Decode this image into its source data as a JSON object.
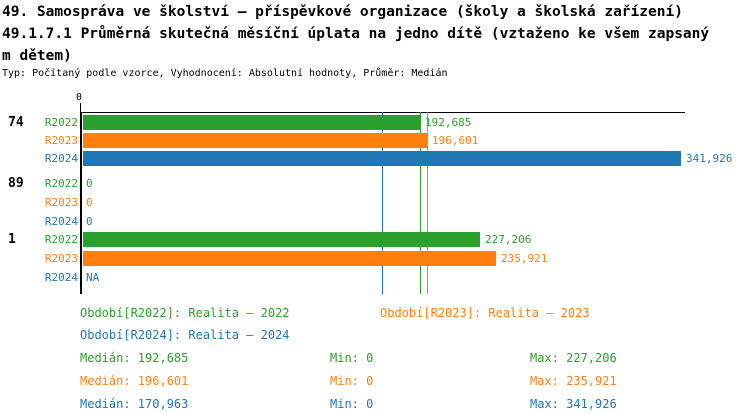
{
  "header": {
    "title_line1": "49. Samospráva ve školství – příspěvkové organizace (školy a školská zařízení)",
    "title_line2": "49.1.7.1 Průměrná skutečná měsíční úplata na jedno dítě (vztaženo ke všem zapsaný",
    "title_line3": "m dětem)",
    "meta": "Typ: Počítaný podle vzorce, Vyhodnocení: Absolutní hodnoty, Průměr: Medián"
  },
  "colors": {
    "green": "#2ca02c",
    "orange": "#ff7f0e",
    "blue": "#1f77b4",
    "axis": "#000000"
  },
  "chart_data": {
    "type": "bar",
    "orientation": "horizontal",
    "x_axis_tick_label": "0",
    "xlim": [
      0,
      341926
    ],
    "categories": [
      "74",
      "89",
      "1"
    ],
    "series_names": [
      "R2022",
      "R2023",
      "R2024"
    ],
    "groups": [
      {
        "label": "74",
        "bars": [
          {
            "series": "R2022",
            "value": 192685,
            "display": "192,685",
            "color": "green"
          },
          {
            "series": "R2023",
            "value": 196601,
            "display": "196,601",
            "color": "orange"
          },
          {
            "series": "R2024",
            "value": 341926,
            "display": "341,926",
            "color": "blue"
          }
        ]
      },
      {
        "label": "89",
        "bars": [
          {
            "series": "R2022",
            "value": 0,
            "display": "0",
            "color": "green"
          },
          {
            "series": "R2023",
            "value": 0,
            "display": "0",
            "color": "orange"
          },
          {
            "series": "R2024",
            "value": 0,
            "display": "0",
            "color": "blue"
          }
        ]
      },
      {
        "label": "1",
        "bars": [
          {
            "series": "R2022",
            "value": 227206,
            "display": "227,206",
            "color": "green"
          },
          {
            "series": "R2023",
            "value": 235921,
            "display": "235,921",
            "color": "orange"
          },
          {
            "series": "R2024",
            "value": null,
            "display": "NA",
            "color": "blue"
          }
        ]
      }
    ],
    "medians": [
      {
        "series": "R2022",
        "value": 192685,
        "color": "green"
      },
      {
        "series": "R2023",
        "value": 196601,
        "color": "orange"
      },
      {
        "series": "R2024",
        "value": 170963,
        "color": "blue"
      }
    ],
    "legend": [
      {
        "label": "Období[R2022]: Realita – 2022",
        "color": "green"
      },
      {
        "label": "Období[R2023]: Realita – 2023",
        "color": "orange"
      },
      {
        "label": "Období[R2024]: Realita – 2024",
        "color": "blue"
      }
    ],
    "stats": [
      {
        "median": "Medián: 192,685",
        "min": "Min: 0",
        "max": "Max: 227,206",
        "color": "green"
      },
      {
        "median": "Medián: 196,601",
        "min": "Min: 0",
        "max": "Max: 235,921",
        "color": "orange"
      },
      {
        "median": "Medián: 170,963",
        "min": "Min: 0",
        "max": "Max: 341,926",
        "color": "blue"
      }
    ]
  }
}
